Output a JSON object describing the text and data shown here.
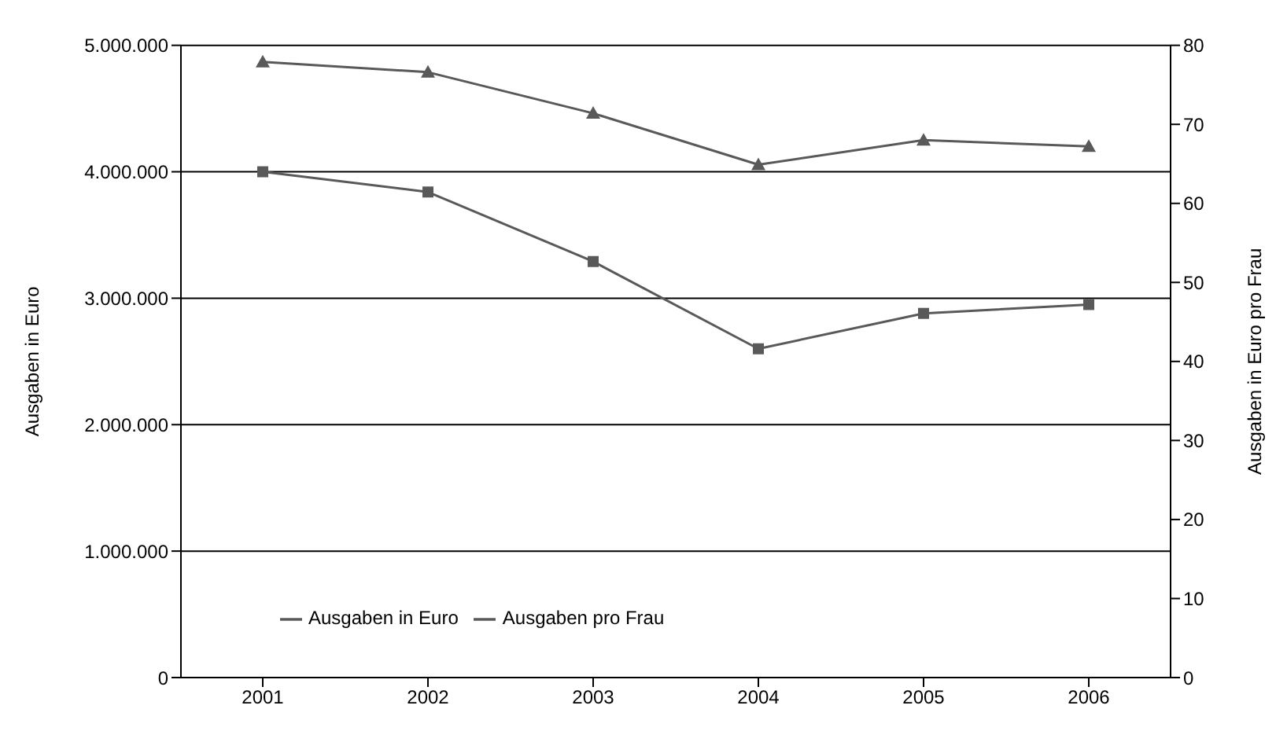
{
  "chart_data": {
    "type": "line",
    "categories": [
      "2001",
      "2002",
      "2003",
      "2004",
      "2005",
      "2006"
    ],
    "ylabel": "Ausgaben in  Euro",
    "y2label": "Ausgaben in Euro pro Frau",
    "series": [
      {
        "name": "Ausgaben in Euro",
        "color": "#595959",
        "marker": "square",
        "values": [
          4000000,
          3840000,
          3290000,
          2600000,
          2880000,
          2950000
        ]
      },
      {
        "name": "Ausgaben pro Frau",
        "color": "#595959",
        "marker": "triangle",
        "axis": "y2",
        "values": [
          77.9,
          76.6,
          71.4,
          64.9,
          68.0,
          67.2
        ]
      }
    ],
    "ylim": [
      0,
      5000000
    ],
    "yticks": [
      0,
      {
        "value": 1000000,
        "label": "1.000.000"
      },
      {
        "value": 2000000,
        "label": "2.000.000"
      },
      {
        "value": 3000000,
        "label": "3.000.000"
      },
      {
        "value": 4000000,
        "label": "4.000.000"
      },
      {
        "value": 5000000,
        "label": "5.000.000"
      }
    ],
    "y2lim": [
      0,
      80
    ],
    "y2ticks": [
      0,
      10,
      20,
      30,
      40,
      50,
      60,
      70,
      80
    ],
    "grid": "y",
    "legend": "bottom left",
    "line_style": "solid"
  }
}
